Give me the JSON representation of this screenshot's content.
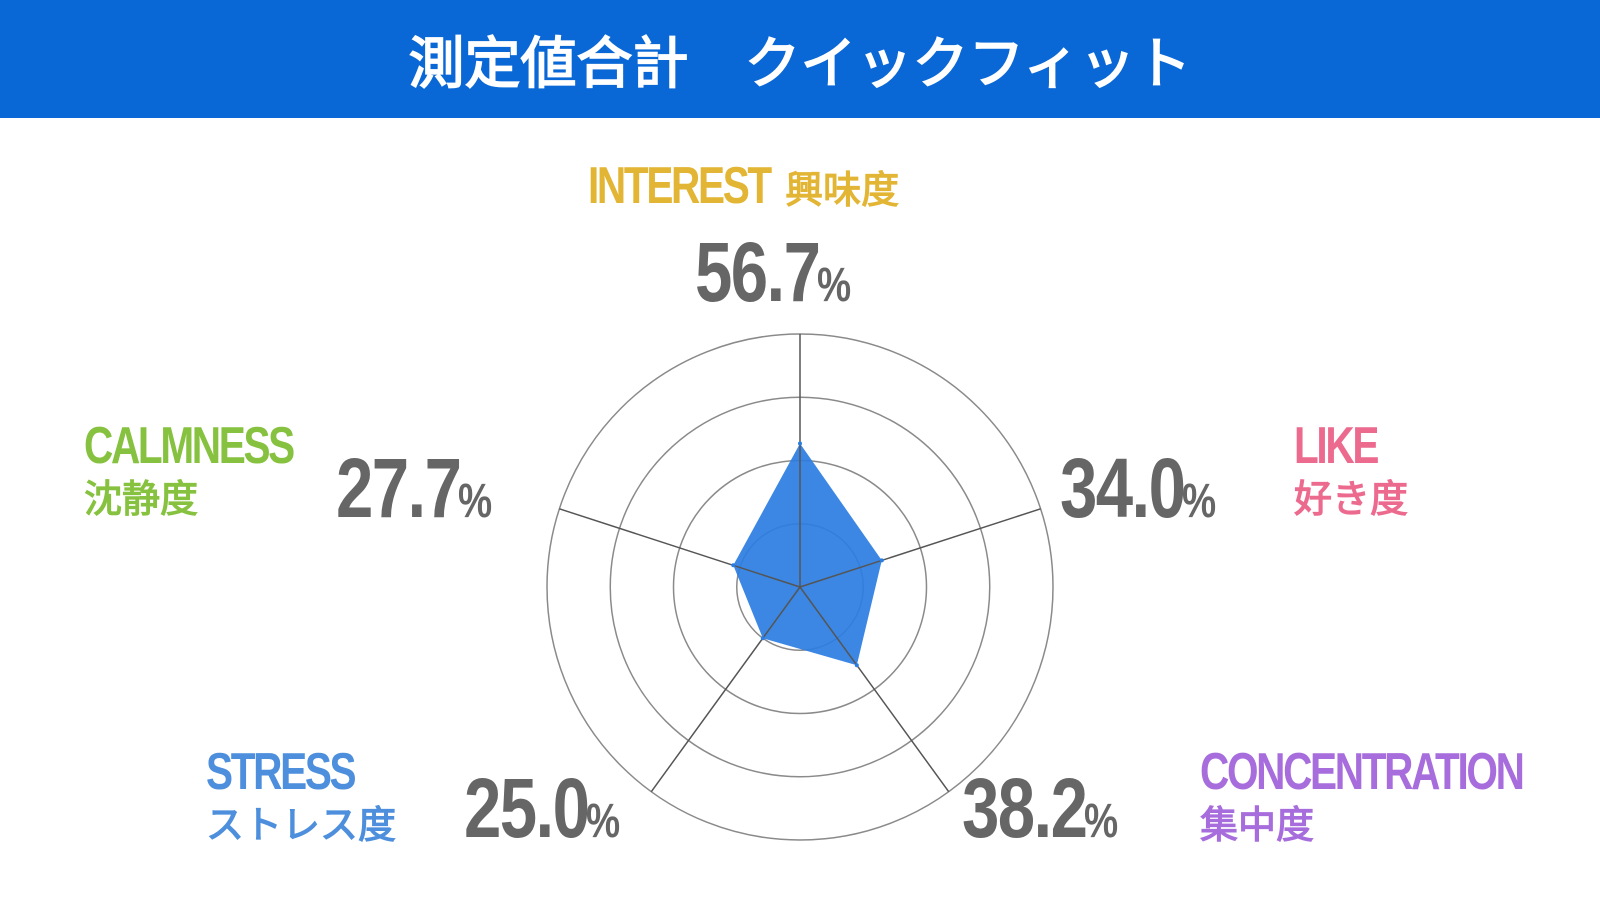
{
  "header": {
    "title": "測定値合計　クイックフィット",
    "background": "#0a67d6"
  },
  "chart_data": {
    "type": "radar",
    "scale_max": 100,
    "rings": [
      25,
      50,
      75,
      100
    ],
    "fill_color": "#2a7de1",
    "axes": [
      {
        "key": "interest",
        "label_en": "INTEREST",
        "label_jp": "興味度",
        "value": 56.7,
        "value_text": "56.7",
        "unit": "%",
        "color": "#e3b534"
      },
      {
        "key": "like",
        "label_en": "LIKE",
        "label_jp": "好き度",
        "value": 34.0,
        "value_text": "34.0",
        "unit": "%",
        "color": "#ec6a8e"
      },
      {
        "key": "concentration",
        "label_en": "CONCENTRATION",
        "label_jp": "集中度",
        "value": 38.2,
        "value_text": "38.2",
        "unit": "%",
        "color": "#a86ddc"
      },
      {
        "key": "stress",
        "label_en": "STRESS",
        "label_jp": "ストレス度",
        "value": 25.0,
        "value_text": "25.0",
        "unit": "%",
        "color": "#4d8fdc"
      },
      {
        "key": "calmness",
        "label_en": "CALMNESS",
        "label_jp": "沈静度",
        "value": 27.7,
        "value_text": "27.7",
        "unit": "%",
        "color": "#86c23f"
      }
    ]
  }
}
